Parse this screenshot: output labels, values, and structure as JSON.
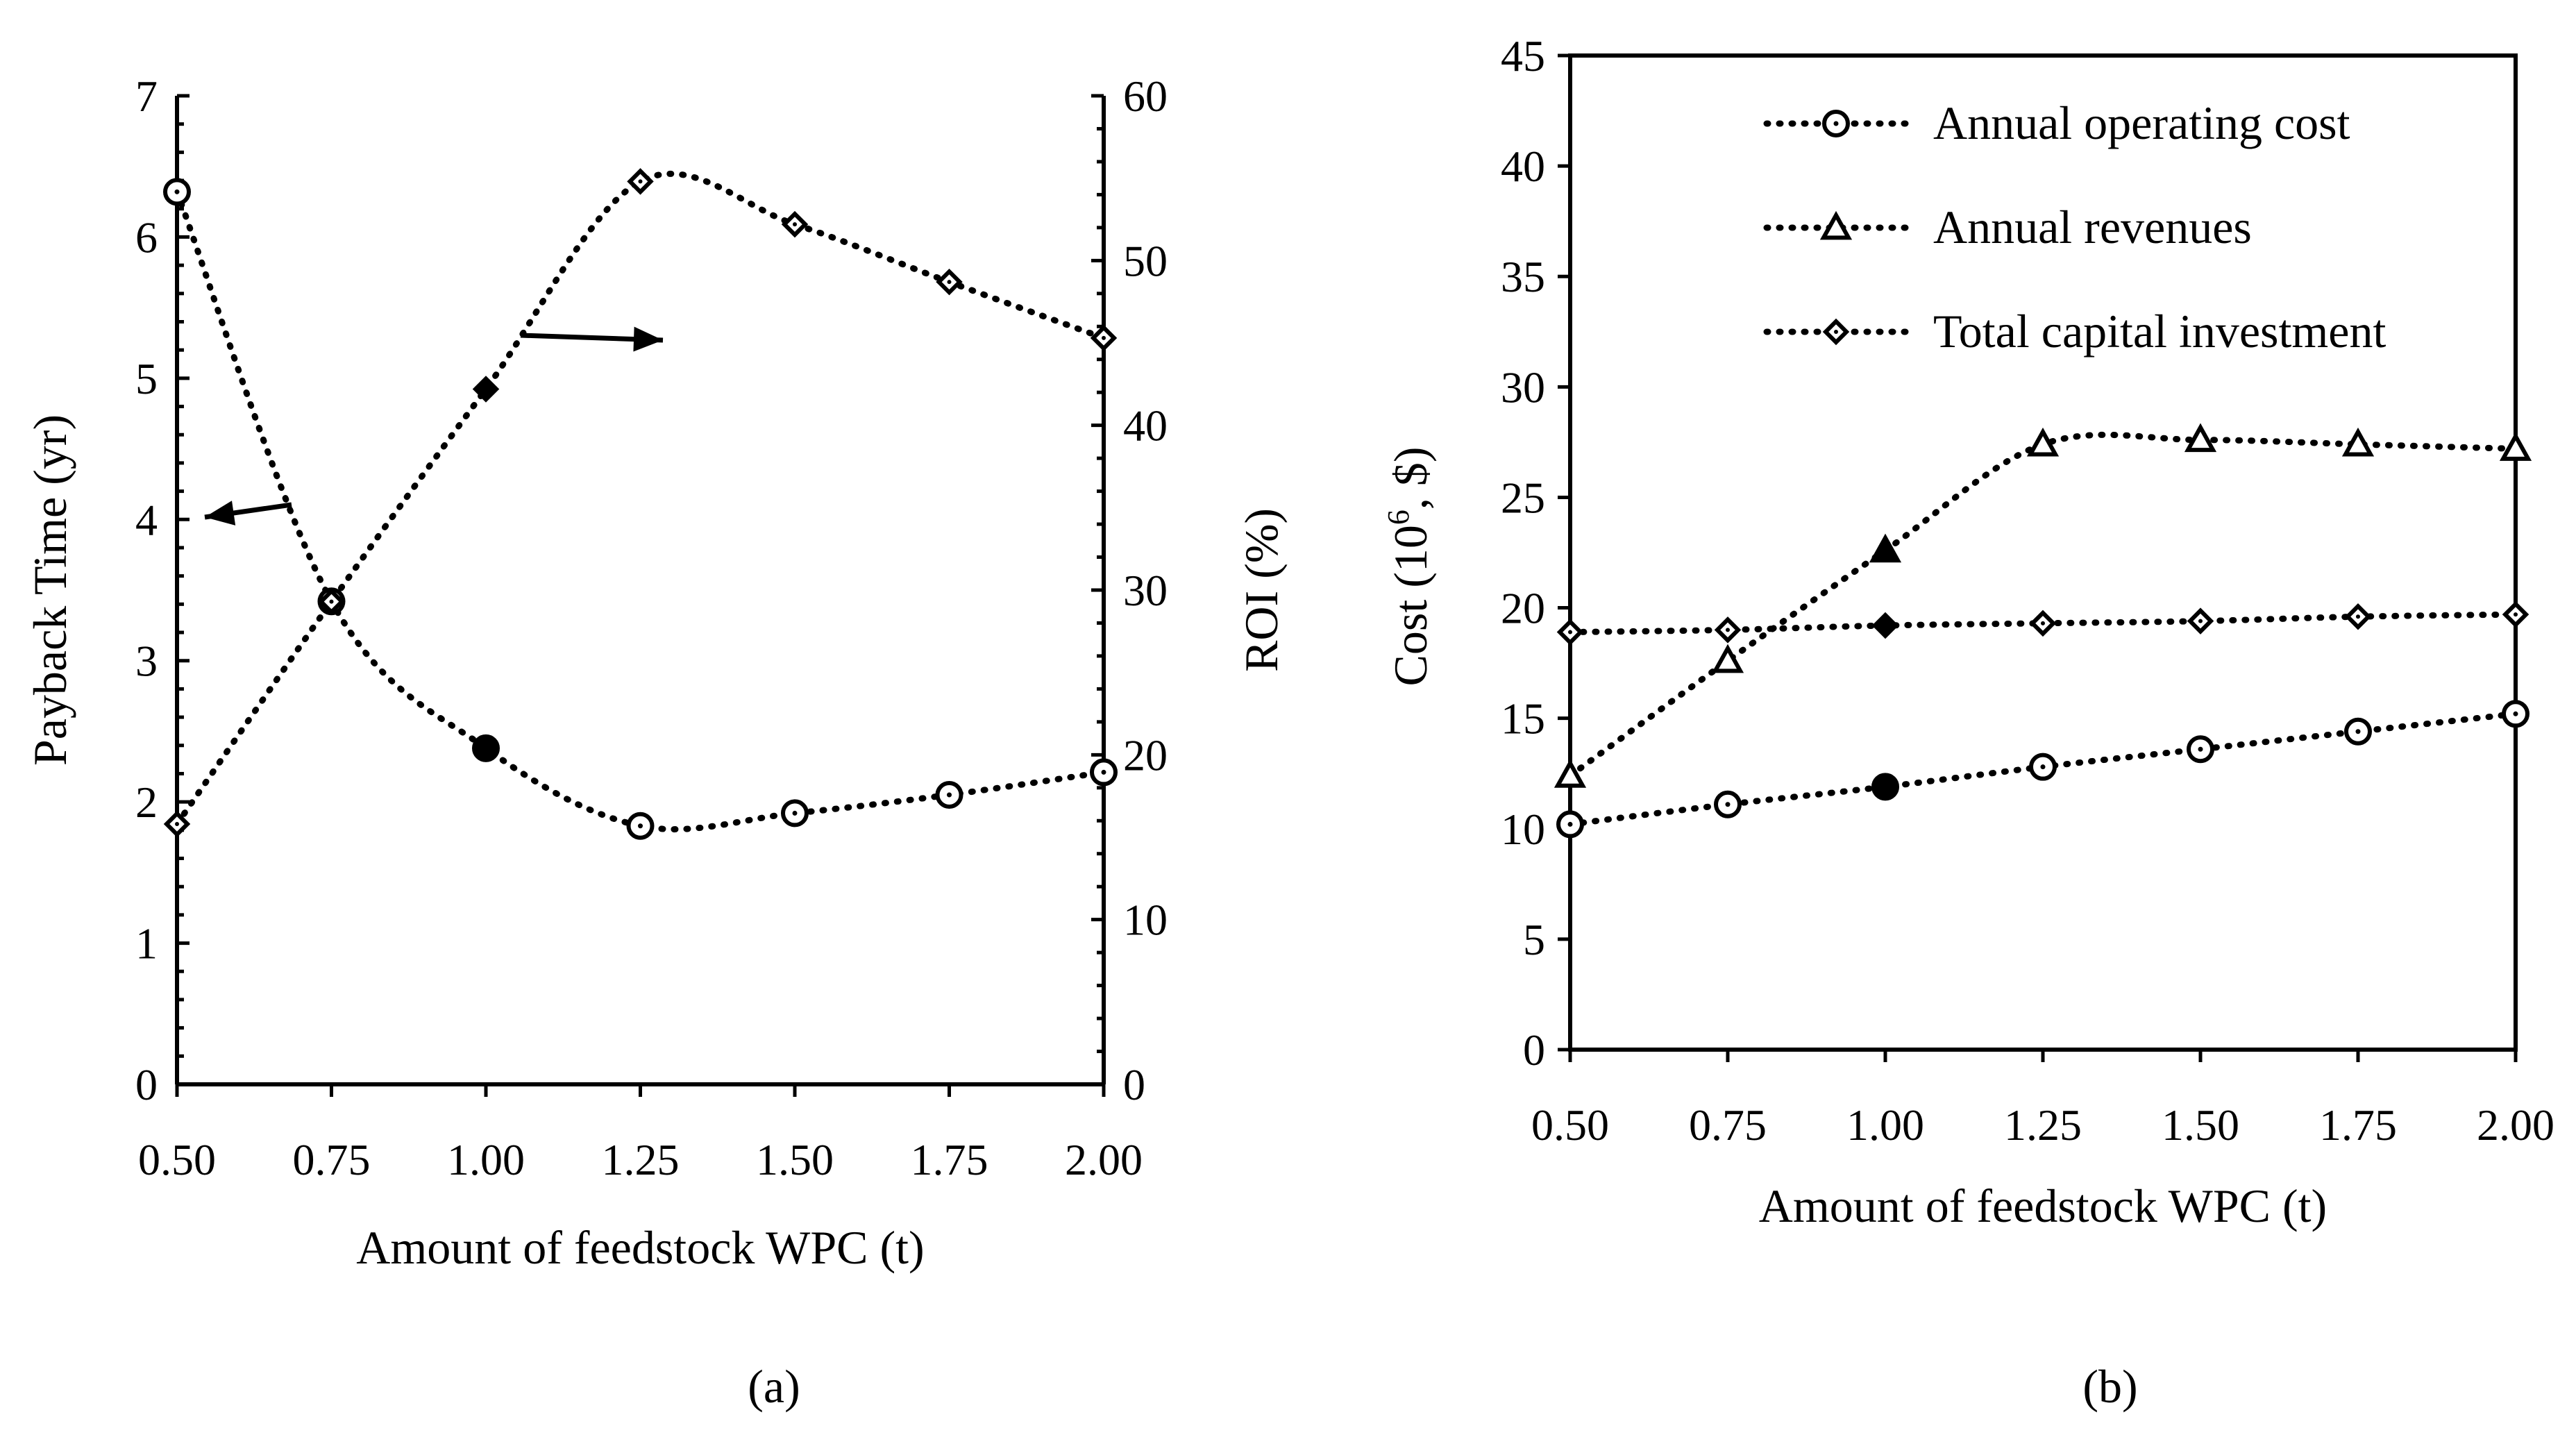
{
  "chart_data": [
    {
      "type": "line",
      "panel": "(a)",
      "title": "",
      "xlabel": "Amount of feedstock WPC (t)",
      "ylabel": "Payback Time (yr)",
      "y2label": "ROI (%)",
      "xlim": [
        0.5,
        2.0
      ],
      "ylim": [
        0,
        7
      ],
      "y2lim": [
        0,
        60
      ],
      "x_ticks": [
        "0.50",
        "0.75",
        "1.00",
        "1.25",
        "1.50",
        "1.75",
        "2.00"
      ],
      "y_ticks": [
        "0",
        "1",
        "2",
        "3",
        "4",
        "5",
        "6",
        "7"
      ],
      "y2_ticks": [
        "0",
        "10",
        "20",
        "30",
        "40",
        "50",
        "60"
      ],
      "x": [
        0.5,
        0.75,
        1.0,
        1.25,
        1.5,
        1.75,
        2.0
      ],
      "series": [
        {
          "name": "Payback Time",
          "axis": "left",
          "marker": "circle",
          "filled_index": 2,
          "values": [
            6.32,
            3.42,
            2.38,
            1.83,
            1.92,
            2.05,
            2.21
          ]
        },
        {
          "name": "ROI",
          "axis": "right",
          "marker": "diamond",
          "filled_index": 2,
          "values": [
            15.8,
            29.3,
            42.2,
            54.8,
            52.2,
            48.7,
            45.3
          ]
        }
      ],
      "annotations": [
        {
          "type": "arrow",
          "direction": "left",
          "meaning": "Payback Time uses left axis"
        },
        {
          "type": "arrow",
          "direction": "right",
          "meaning": "ROI uses right axis"
        }
      ]
    },
    {
      "type": "line",
      "panel": "(b)",
      "title": "",
      "xlabel": "Amount of feedstock WPC (t)",
      "ylabel_parts": [
        "Cost (10",
        "6",
        ", $)"
      ],
      "xlim": [
        0.5,
        2.0
      ],
      "ylim": [
        0,
        45
      ],
      "x_ticks": [
        "0.50",
        "0.75",
        "1.00",
        "1.25",
        "1.50",
        "1.75",
        "2.00"
      ],
      "y_ticks": [
        "0",
        "5",
        "10",
        "15",
        "20",
        "25",
        "30",
        "35",
        "40",
        "45"
      ],
      "x": [
        0.5,
        0.75,
        1.0,
        1.25,
        1.5,
        1.75,
        2.0
      ],
      "legend_position": "top-right",
      "series": [
        {
          "name": "Annual operating cost",
          "marker": "circle",
          "filled_index": 2,
          "values": [
            10.2,
            11.1,
            11.9,
            12.8,
            13.6,
            14.4,
            15.2
          ]
        },
        {
          "name": "Annual revenues",
          "marker": "triangle",
          "filled_index": 2,
          "values": [
            12.4,
            17.6,
            22.6,
            27.4,
            27.6,
            27.4,
            27.2
          ]
        },
        {
          "name": "Total capital investment",
          "marker": "diamond",
          "filled_index": 2,
          "values": [
            18.9,
            19.0,
            19.2,
            19.3,
            19.4,
            19.6,
            19.7
          ]
        }
      ]
    }
  ]
}
